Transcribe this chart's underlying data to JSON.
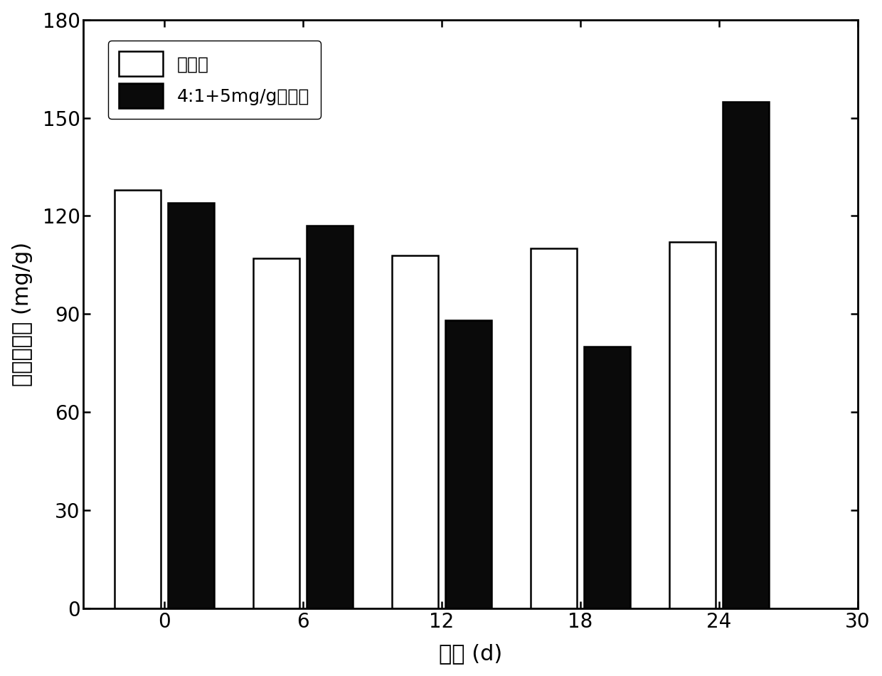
{
  "categories": [
    0,
    6,
    12,
    18,
    24
  ],
  "white_values": [
    128,
    107,
    108,
    110,
    112
  ],
  "black_values": [
    124,
    117,
    88,
    80,
    155
  ],
  "white_color": "#ffffff",
  "black_color": "#0a0a0a",
  "bar_edge_color": "#000000",
  "ylabel": "腐殖酸含量 (mg/g)",
  "xlabel": "时间 (d)",
  "ylim": [
    0,
    180
  ],
  "yticks": [
    0,
    30,
    60,
    90,
    120,
    150,
    180
  ],
  "xticks": [
    0,
    6,
    12,
    18,
    24,
    30
  ],
  "legend_labels": [
    "原污泥",
    "4:1+5mg/g儿茶酚"
  ],
  "bar_width": 2.0,
  "bar_linewidth": 1.8,
  "xlabel_fontsize": 22,
  "ylabel_fontsize": 22,
  "tick_fontsize": 20,
  "legend_fontsize": 18,
  "xlim_left": -3.5,
  "xlim_right": 30
}
